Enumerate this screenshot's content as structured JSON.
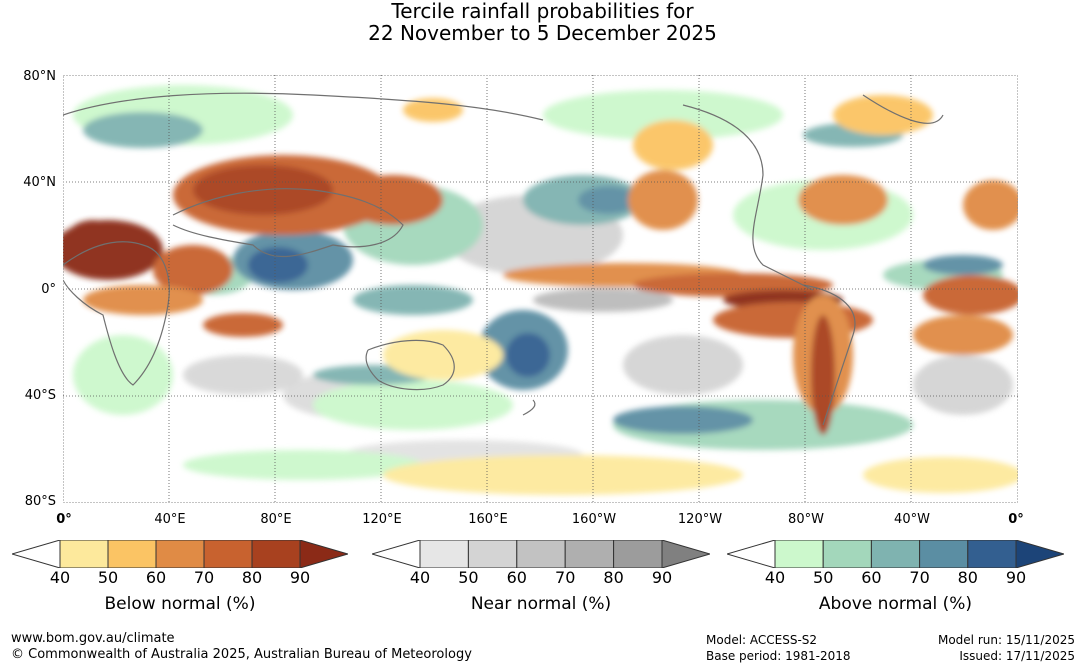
{
  "title": {
    "line1": "Tercile rainfall probabilities for",
    "line2": "22 November to 5 December 2025"
  },
  "map": {
    "lat_labels": [
      "80°N",
      "40°N",
      "0°",
      "40°S",
      "80°S"
    ],
    "lon_labels": [
      "0°",
      "40°E",
      "80°E",
      "120°E",
      "160°E",
      "160°W",
      "120°W",
      "80°W",
      "40°W",
      "0°"
    ]
  },
  "legends": [
    {
      "caption": "Below normal (%)",
      "ticks": [
        "40",
        "50",
        "60",
        "70",
        "80",
        "90"
      ],
      "colors": [
        "#ffffff",
        "#fde99c",
        "#fbc464",
        "#e08b45",
        "#c8622f",
        "#a8411f",
        "#8b2a17"
      ]
    },
    {
      "caption": "Near normal (%)",
      "ticks": [
        "40",
        "50",
        "60",
        "70",
        "80",
        "90"
      ],
      "colors": [
        "#ffffff",
        "#e6e6e6",
        "#d4d4d4",
        "#c2c2c2",
        "#afafaf",
        "#9c9c9c",
        "#808080"
      ]
    },
    {
      "caption": "Above normal (%)",
      "ticks": [
        "40",
        "50",
        "60",
        "70",
        "80",
        "90"
      ],
      "colors": [
        "#ffffff",
        "#ccf8cc",
        "#a3d7bb",
        "#7fb3b0",
        "#5b8ea3",
        "#335f90",
        "#1c4478"
      ]
    }
  ],
  "footer": {
    "url": "www.bom.gov.au/climate",
    "copyright": "© Commonwealth of Australia 2025, Australian Bureau of Meteorology",
    "model": "Model: ACCESS-S2",
    "base_period": "Base period: 1981-2018",
    "model_run": "Model run: 15/11/2025",
    "issued": "Issued: 17/11/2025"
  }
}
